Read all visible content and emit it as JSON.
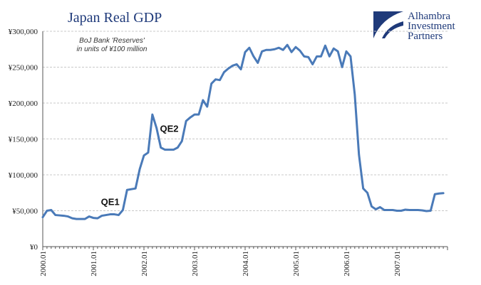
{
  "chart_data": {
    "type": "line",
    "title": "Japan Real GDP",
    "subtitle_lines": [
      "BoJ Bank 'Reserves'",
      "in units of ¥100 million"
    ],
    "logo_lines": [
      "Alhambra",
      "Investment",
      "Partners"
    ],
    "ylim": [
      0,
      300000
    ],
    "yticks": [
      {
        "value": 0,
        "label": "¥0"
      },
      {
        "value": 50000,
        "label": "¥50,000"
      },
      {
        "value": 100000,
        "label": "¥100,000"
      },
      {
        "value": 150000,
        "label": "¥150,000"
      },
      {
        "value": 200000,
        "label": "¥200,000"
      },
      {
        "value": 250000,
        "label": "¥250,000"
      },
      {
        "value": 300000,
        "label": "¥300,000"
      }
    ],
    "xticks": [
      "2000.01",
      "2001.01",
      "2002.01",
      "2003.01",
      "2004.01",
      "2005.01",
      "2006.01",
      "2007.01"
    ],
    "annotations": [
      {
        "label": "QE1",
        "x": "2001.05",
        "y": 55000
      },
      {
        "label": "QE2",
        "x": "2002.07",
        "y": 157000
      }
    ],
    "grid": true,
    "series": [
      {
        "color": "#4a7ab8",
        "points": [
          [
            "2000.01",
            41000
          ],
          [
            "2000.02",
            50000
          ],
          [
            "2000.03",
            51000
          ],
          [
            "2000.04",
            44000
          ],
          [
            "2000.05",
            43500
          ],
          [
            "2000.06",
            43000
          ],
          [
            "2000.07",
            42000
          ],
          [
            "2000.08",
            39500
          ],
          [
            "2000.09",
            38500
          ],
          [
            "2000.10",
            38500
          ],
          [
            "2000.11",
            38500
          ],
          [
            "2000.12",
            42000
          ],
          [
            "2001.01",
            40000
          ],
          [
            "2001.02",
            39500
          ],
          [
            "2001.03",
            43000
          ],
          [
            "2001.04",
            44000
          ],
          [
            "2001.05",
            45000
          ],
          [
            "2001.06",
            45000
          ],
          [
            "2001.07",
            44000
          ],
          [
            "2001.08",
            51000
          ],
          [
            "2001.09",
            79000
          ],
          [
            "2001.10",
            80000
          ],
          [
            "2001.11",
            81000
          ],
          [
            "2001.12",
            108000
          ],
          [
            "2002.01",
            127000
          ],
          [
            "2002.02",
            131000
          ],
          [
            "2002.03",
            184000
          ],
          [
            "2002.04",
            165000
          ],
          [
            "2002.05",
            138000
          ],
          [
            "2002.06",
            135000
          ],
          [
            "2002.07",
            135000
          ],
          [
            "2002.08",
            135000
          ],
          [
            "2002.09",
            138000
          ],
          [
            "2002.10",
            147000
          ],
          [
            "2002.11",
            175000
          ],
          [
            "2002.12",
            180000
          ],
          [
            "2003.01",
            184000
          ],
          [
            "2003.02",
            184000
          ],
          [
            "2003.03",
            204000
          ],
          [
            "2003.04",
            195000
          ],
          [
            "2003.05",
            227000
          ],
          [
            "2003.06",
            233000
          ],
          [
            "2003.07",
            232000
          ],
          [
            "2003.08",
            243000
          ],
          [
            "2003.09",
            248000
          ],
          [
            "2003.10",
            252000
          ],
          [
            "2003.11",
            254000
          ],
          [
            "2003.12",
            247000
          ],
          [
            "2004.01",
            271000
          ],
          [
            "2004.02",
            277000
          ],
          [
            "2004.03",
            265000
          ],
          [
            "2004.04",
            256000
          ],
          [
            "2004.05",
            272000
          ],
          [
            "2004.06",
            274000
          ],
          [
            "2004.07",
            274000
          ],
          [
            "2004.08",
            275000
          ],
          [
            "2004.09",
            277000
          ],
          [
            "2004.10",
            274000
          ],
          [
            "2004.11",
            281000
          ],
          [
            "2004.12",
            271000
          ],
          [
            "2005.01",
            278000
          ],
          [
            "2005.02",
            273000
          ],
          [
            "2005.03",
            265000
          ],
          [
            "2005.04",
            264000
          ],
          [
            "2005.05",
            254000
          ],
          [
            "2005.06",
            265000
          ],
          [
            "2005.07",
            265000
          ],
          [
            "2005.08",
            280000
          ],
          [
            "2005.09",
            265000
          ],
          [
            "2005.10",
            276000
          ],
          [
            "2005.11",
            272000
          ],
          [
            "2005.12",
            250000
          ],
          [
            "2006.01",
            272000
          ],
          [
            "2006.02",
            265000
          ],
          [
            "2006.03",
            212000
          ],
          [
            "2006.04",
            128000
          ],
          [
            "2006.05",
            81000
          ],
          [
            "2006.06",
            75000
          ],
          [
            "2006.07",
            56000
          ],
          [
            "2006.08",
            52000
          ],
          [
            "2006.09",
            55000
          ],
          [
            "2006.10",
            51000
          ],
          [
            "2006.11",
            51000
          ],
          [
            "2006.12",
            51000
          ],
          [
            "2007.01",
            50000
          ],
          [
            "2007.02",
            50000
          ],
          [
            "2007.03",
            51500
          ],
          [
            "2007.04",
            51000
          ],
          [
            "2007.05",
            51000
          ],
          [
            "2007.06",
            51000
          ],
          [
            "2007.07",
            50500
          ],
          [
            "2007.08",
            49500
          ],
          [
            "2007.09",
            50000
          ],
          [
            "2007.10",
            73000
          ],
          [
            "2007.11",
            74000
          ],
          [
            "2007.12",
            74500
          ]
        ]
      }
    ]
  }
}
